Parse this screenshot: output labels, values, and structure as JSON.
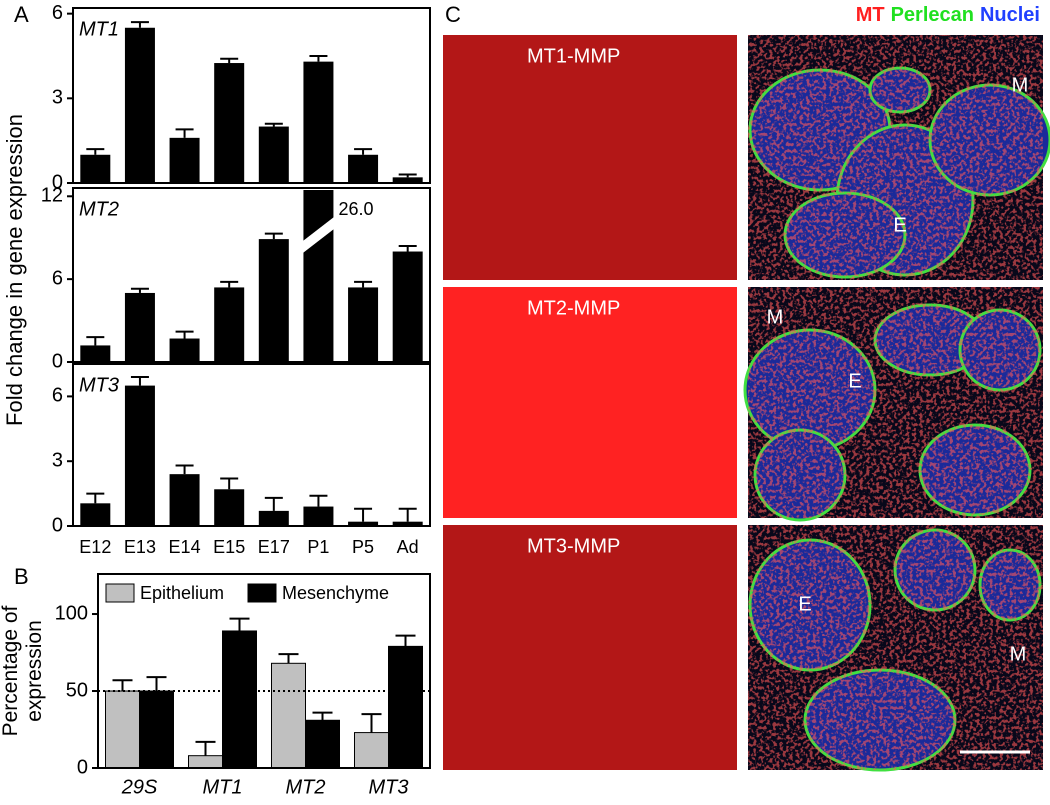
{
  "panel_labels": [
    "A",
    "B",
    "C"
  ],
  "chart_data": [
    {
      "type": "bar",
      "title": "MT1",
      "values": [
        1.0,
        5.5,
        1.6,
        4.25,
        2.0,
        4.3,
        1.0,
        0.2
      ],
      "errors": [
        0.2,
        0.2,
        0.3,
        0.15,
        0.1,
        0.2,
        0.2,
        0.1
      ],
      "color": "#000000",
      "ylim": [
        0,
        6.2
      ],
      "yticks": [
        0,
        3,
        6
      ]
    },
    {
      "type": "bar",
      "title": "MT2",
      "ylabel": "Fold change in gene expression",
      "values": [
        1.2,
        5.0,
        1.7,
        5.4,
        8.9,
        26.0,
        5.4,
        8.0
      ],
      "value_labels": [
        null,
        null,
        null,
        null,
        null,
        "26.0",
        null,
        null
      ],
      "errors": [
        0.6,
        0.3,
        0.5,
        0.4,
        0.4,
        null,
        0.4,
        0.4
      ],
      "color": "#000000",
      "ylim": [
        0,
        12.6
      ],
      "yticks": [
        0,
        6,
        12
      ]
    },
    {
      "type": "bar",
      "title": "MT3",
      "categories": [
        "E12",
        "E13",
        "E14",
        "E15",
        "E17",
        "P1",
        "P5",
        "Ad"
      ],
      "values": [
        1.05,
        6.5,
        2.4,
        1.7,
        0.7,
        0.9,
        0.2,
        0.2
      ],
      "errors": [
        0.45,
        0.4,
        0.4,
        0.5,
        0.6,
        0.5,
        0.6,
        0.6
      ],
      "color": "#000000",
      "ylim": [
        0,
        7.5
      ],
      "yticks": [
        0,
        3,
        6
      ]
    },
    {
      "type": "grouped-bar",
      "ylabel": [
        "Percentage of",
        "expression"
      ],
      "categories": [
        "29S",
        "MT1",
        "MT2",
        "MT3"
      ],
      "series": [
        {
          "name": "Epithelium",
          "color": "#c0c0c0",
          "values": [
            50,
            8,
            68,
            23
          ],
          "errors": [
            7,
            9,
            6,
            12
          ]
        },
        {
          "name": "Mesenchyme",
          "color": "#000000",
          "values": [
            50,
            89,
            31,
            79
          ],
          "errors": [
            9,
            8,
            5,
            7
          ]
        }
      ],
      "reference_line": 50,
      "ylim": [
        0,
        126
      ],
      "yticks": [
        0,
        50,
        100
      ]
    }
  ],
  "micrograph_legend": [
    {
      "text": "MT",
      "color": "#ff2020"
    },
    {
      "text": "Perlecan",
      "color": "#20e020"
    },
    {
      "text": "Nuclei",
      "color": "#2040ff"
    }
  ],
  "micrographs": [
    {
      "label": "MT1-MMP",
      "marks": [
        "M",
        "E"
      ]
    },
    {
      "label": "MT2-MMP",
      "marks": [
        "M",
        "E"
      ]
    },
    {
      "label": "MT3-MMP",
      "marks": [
        "E",
        "M"
      ]
    }
  ]
}
